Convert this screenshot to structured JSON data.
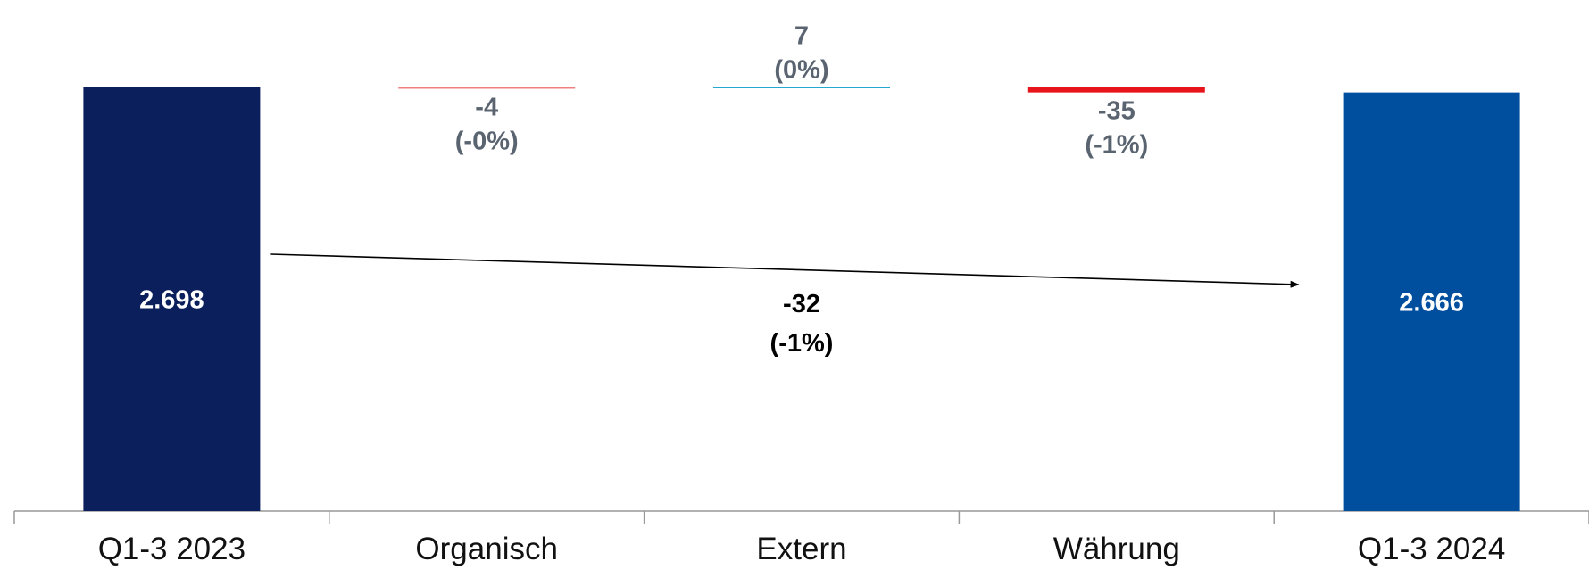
{
  "chart_data": {
    "type": "bar",
    "subtype": "waterfall",
    "title": "",
    "xlabel": "",
    "ylabel": "",
    "ylim": [
      0,
      2800
    ],
    "grid": false,
    "categories": [
      "Q1-3 2023",
      "Organisch",
      "Extern",
      "Währung",
      "Q1-3 2024"
    ],
    "values": [
      2698,
      -4,
      7,
      -35,
      2666
    ],
    "kinds": [
      "total",
      "delta",
      "delta",
      "delta",
      "total"
    ],
    "value_labels": [
      "2.698",
      "-4",
      "7",
      "-35",
      "2.666"
    ],
    "percent_labels": [
      "",
      "(-0%)",
      "(0%)",
      "(-1%)",
      ""
    ],
    "colors": [
      "#0a1f5c",
      "#f08080",
      "#1fa8cf",
      "#e8141c",
      "#004f9f"
    ],
    "annotation": {
      "from": "Q1-3 2023",
      "to": "Q1-3 2024",
      "value_label": "-32",
      "percent_label": "(-1%)"
    }
  }
}
